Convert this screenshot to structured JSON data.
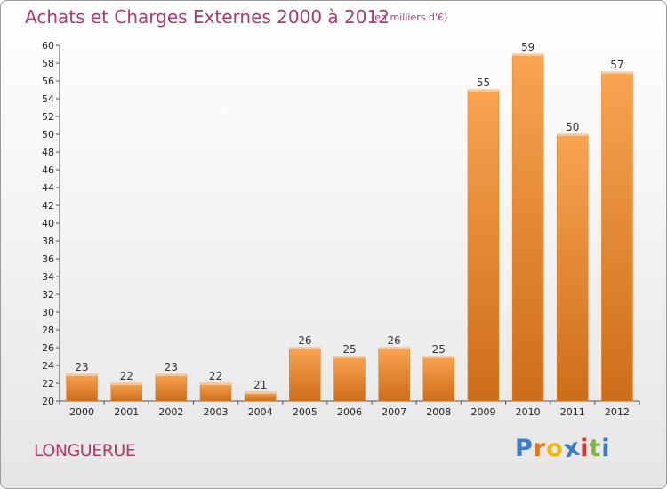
{
  "header": {
    "title": "Achats et Charges Externes 2000 à 2012",
    "unit": "(en milliers d'€)"
  },
  "footer": {
    "commune": "LONGUERUE",
    "logo_text": "Proxiti"
  },
  "colors": {
    "title": "#b03a6c",
    "bar_light": "#f9a451",
    "bar_dark": "#cd6d18",
    "logo": [
      "#3d7cc9",
      "#e8731e",
      "#f0b400",
      "#3d7cc9",
      "#d8342c",
      "#7bb83a",
      "#3d7cc9"
    ]
  },
  "chart_data": {
    "type": "bar",
    "title": "Achats et Charges Externes 2000 à 2012",
    "subtitle": "(en milliers d'€)",
    "categories": [
      "2000",
      "2001",
      "2002",
      "2003",
      "2004",
      "2005",
      "2006",
      "2007",
      "2008",
      "2009",
      "2010",
      "2011",
      "2012"
    ],
    "values": [
      23,
      22,
      23,
      22,
      21,
      26,
      25,
      26,
      25,
      55,
      59,
      50,
      57
    ],
    "ylim": [
      20,
      60
    ],
    "ytick_step": 2,
    "grid": false,
    "legend": "none",
    "data_labels": true
  }
}
